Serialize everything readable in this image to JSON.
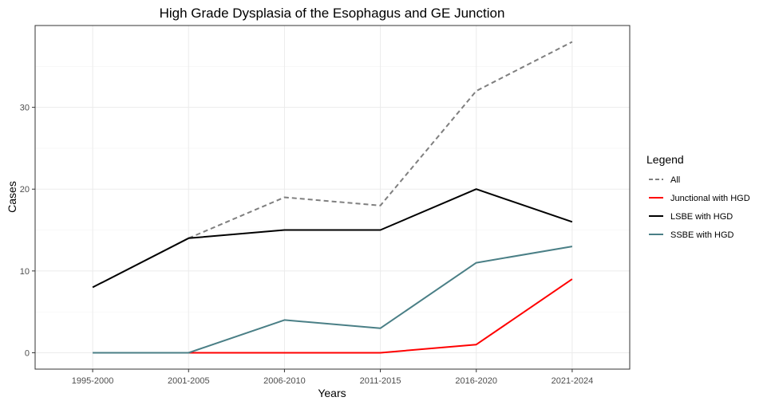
{
  "chart_data": {
    "type": "line",
    "title": "High Grade Dysplasia of the Esophagus and GE Junction",
    "xlabel": "Years",
    "ylabel": "Cases",
    "categories": [
      "1995-2000",
      "2001-2005",
      "2006-2010",
      "2011-2015",
      "2016-2020",
      "2021-2024"
    ],
    "y_ticks": [
      0,
      10,
      20,
      30
    ],
    "ylim": [
      -2,
      40
    ],
    "grid": true,
    "legend": {
      "title": "Legend",
      "position": "right"
    },
    "series": [
      {
        "name": "All",
        "color": "#7f7f7f",
        "dash": "dashed",
        "values": [
          null,
          14,
          19,
          18,
          32,
          38
        ]
      },
      {
        "name": "Junctional with HGD",
        "color": "#ff0000",
        "dash": "solid",
        "values": [
          null,
          0,
          0,
          0,
          1,
          9
        ]
      },
      {
        "name": "LSBE with HGD",
        "color": "#000000",
        "dash": "solid",
        "values": [
          8,
          14,
          15,
          15,
          20,
          16
        ]
      },
      {
        "name": "SSBE with HGD",
        "color": "#4a7f86",
        "dash": "solid",
        "values": [
          0,
          0,
          4,
          3,
          11,
          13
        ]
      }
    ]
  }
}
